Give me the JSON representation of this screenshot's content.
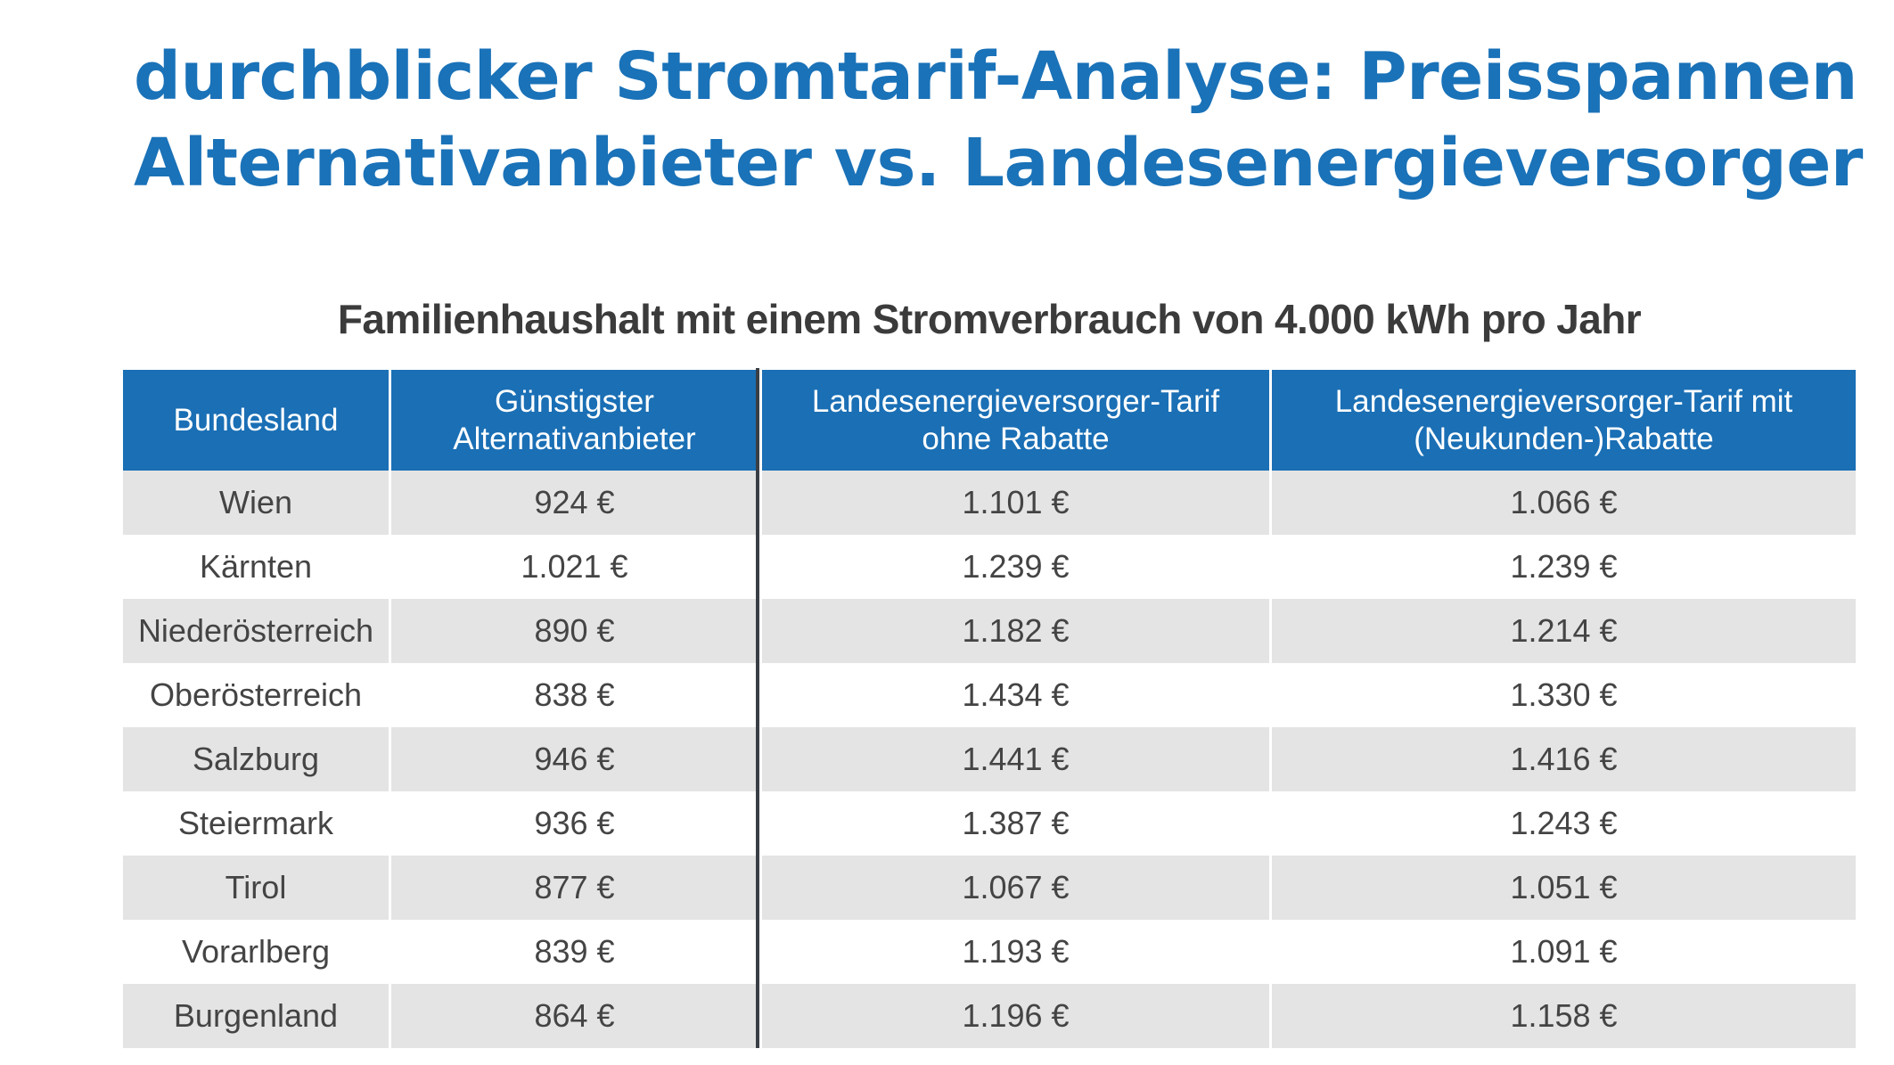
{
  "title": {
    "line1": "durchblicker Stromtarif-Analyse: Preisspannen",
    "line2": "Alternativanbieter vs. Landesenergieversorger"
  },
  "subtitle": "Familienhaushalt mit einem Stromverbrauch von 4.000 kWh pro Jahr",
  "colors": {
    "title": "#1a72b8",
    "header_bg": "#1a6fb5",
    "row_shade": "#e4e4e4",
    "text": "#444444",
    "divider": "#3a3f45"
  },
  "table": {
    "headers": [
      {
        "line1": "Bundesland",
        "line2": ""
      },
      {
        "line1": "Günstigster",
        "line2": "Alternativanbieter"
      },
      {
        "line1": "Landesenergieversorger-Tarif",
        "line2": "ohne Rabatte"
      },
      {
        "line1": "Landesenergieversorger-Tarif mit",
        "line2": "(Neukunden-)Rabatte"
      }
    ],
    "rows": [
      [
        "Wien",
        "924 €",
        "1.101 €",
        "1.066 €"
      ],
      [
        "Kärnten",
        "1.021 €",
        "1.239 €",
        "1.239 €"
      ],
      [
        "Niederösterreich",
        "890 €",
        "1.182 €",
        "1.214 €"
      ],
      [
        "Oberösterreich",
        "838 €",
        "1.434 €",
        "1.330 €"
      ],
      [
        "Salzburg",
        "946 €",
        "1.441 €",
        "1.416 €"
      ],
      [
        "Steiermark",
        "936 €",
        "1.387 €",
        "1.243 €"
      ],
      [
        "Tirol",
        "877 €",
        "1.067 €",
        "1.051 €"
      ],
      [
        "Vorarlberg",
        "839 €",
        "1.193 €",
        "1.091 €"
      ],
      [
        "Burgenland",
        "864 €",
        "1.196 €",
        "1.158 €"
      ]
    ]
  }
}
